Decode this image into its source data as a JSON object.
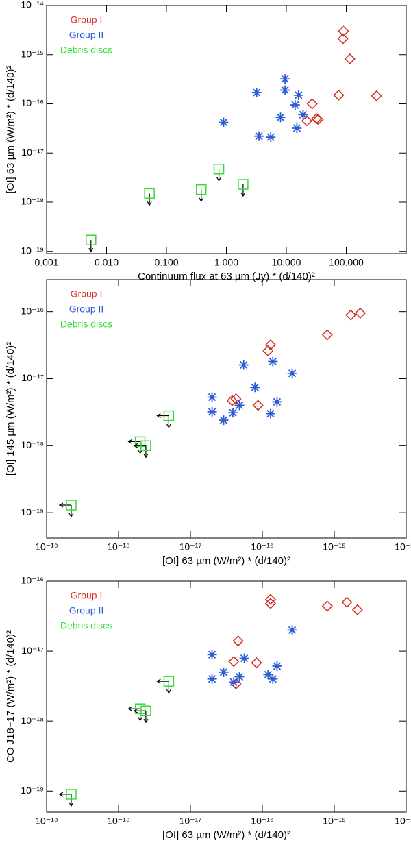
{
  "chart_data": [
    {
      "type": "scatter",
      "xscale": "log",
      "yscale": "log",
      "xlabel": "Continuum flux at 63 µm (Jy) * (d/140)²",
      "ylabel": "[OI] 63 µm (W/m²) * (d/140)²",
      "xlim": [
        0.001,
        1000
      ],
      "ylim": [
        9e-20,
        1e-14
      ],
      "xticks": [
        0.001,
        {
          "value": 0.01,
          "label": "0.010"
        },
        {
          "value": 0.1,
          "label": "0.100"
        },
        {
          "value": 1,
          "label": "1.000"
        },
        {
          "value": 10,
          "label": "10.000"
        },
        {
          "value": 100,
          "label": "100.000"
        }
      ],
      "yticks": [
        {
          "value": 1e-14,
          "label": "10⁻¹⁴"
        },
        {
          "value": 1e-15,
          "label": "10⁻¹⁵"
        },
        {
          "value": 1e-16,
          "label": "10⁻¹⁶"
        },
        {
          "value": 1e-17,
          "label": "10⁻¹⁷"
        },
        {
          "value": 1e-18,
          "label": "10⁻¹⁸"
        },
        {
          "value": 1e-19,
          "label": "10⁻¹⁹"
        }
      ],
      "series": [
        {
          "name": "Group I",
          "color": "#d42a1e",
          "marker": "diamond",
          "x": [
            90,
            88,
            115,
            75,
            320,
            27,
            22,
            32,
            34
          ],
          "values": [
            3e-15,
            2.1e-15,
            8.2e-16,
            1.5e-16,
            1.45e-16,
            1e-16,
            4.5e-17,
            5e-17,
            4.8e-17
          ]
        },
        {
          "name": "Group II",
          "color": "#2a5ad6",
          "marker": "asterisk",
          "x": [
            0.9,
            3.2,
            3.5,
            5.5,
            9.5,
            9.5,
            8,
            14,
            16,
            15,
            19
          ],
          "values": [
            4.2e-17,
            1.7e-16,
            2.2e-17,
            2.1e-17,
            3.2e-16,
            1.9e-16,
            5.3e-17,
            9.5e-17,
            1.5e-16,
            3.2e-17,
            6e-17
          ]
        },
        {
          "name": "Debris discs",
          "color": "#33dd33",
          "marker": "square",
          "upper_limit": true,
          "x": [
            0.0055,
            0.052,
            0.38,
            0.75,
            1.9
          ],
          "values": [
            1.7e-19,
            1.5e-18,
            1.8e-18,
            4.7e-18,
            2.3e-18
          ]
        }
      ]
    },
    {
      "type": "scatter",
      "xscale": "log",
      "yscale": "log",
      "xlabel": "[OI] 63 µm (W/m²) * (d/140)²",
      "ylabel": "[OI] 145 µm (W/m²) * (d/140)²",
      "xlim": [
        1e-19,
        1e-14
      ],
      "ylim": [
        4.2e-20,
        3e-16
      ],
      "xticks": [
        {
          "value": 1e-19,
          "label": "10⁻¹⁹"
        },
        {
          "value": 1e-18,
          "label": "10⁻¹⁸"
        },
        {
          "value": 1e-17,
          "label": "10⁻¹⁷"
        },
        {
          "value": 1e-16,
          "label": "10⁻¹⁶"
        },
        {
          "value": 1e-15,
          "label": "10⁻¹⁵"
        },
        {
          "value": 1e-14,
          "label": "10⁻¹⁴"
        }
      ],
      "yticks": [
        {
          "value": 1e-16,
          "label": "10⁻¹⁶"
        },
        {
          "value": 1e-17,
          "label": "10⁻¹⁷"
        },
        {
          "value": 1e-18,
          "label": "10⁻¹⁸"
        },
        {
          "value": 1e-19,
          "label": "10⁻¹⁹"
        }
      ],
      "series": [
        {
          "name": "Group I",
          "color": "#d42a1e",
          "marker": "diamond",
          "x": [
            1.7e-15,
            2.3e-15,
            8e-16,
            1.3e-16,
            1.2e-16,
            4.3e-17,
            3.8e-17,
            8.7e-17
          ],
          "values": [
            8.9e-17,
            9.5e-17,
            4.5e-17,
            3.2e-17,
            2.6e-17,
            5e-18,
            4.7e-18,
            4e-18
          ]
        },
        {
          "name": "Group II",
          "color": "#2a5ad6",
          "marker": "asterisk",
          "x": [
            5.5e-17,
            1.4e-16,
            2.6e-16,
            2e-17,
            2e-17,
            2.9e-17,
            3.9e-17,
            4.8e-17,
            7.9e-17,
            1.3e-16,
            1.6e-16
          ],
          "values": [
            1.6e-17,
            1.8e-17,
            1.2e-17,
            5.3e-18,
            3.2e-18,
            2.4e-18,
            3.1e-18,
            4e-18,
            7.4e-18,
            3e-18,
            4.5e-18
          ]
        },
        {
          "name": "Debris discs",
          "color": "#33dd33",
          "marker": "square",
          "upper_limit": true,
          "x_upper_limit": true,
          "x": [
            2.2e-19,
            2e-18,
            2.4e-18,
            5e-18
          ],
          "values": [
            1.3e-19,
            1.15e-18,
            1e-18,
            2.8e-18
          ]
        }
      ]
    },
    {
      "type": "scatter",
      "xscale": "log",
      "yscale": "log",
      "xlabel": "[OI] 63 µm (W/m²) * (d/140)²",
      "ylabel": "CO J18−17 (W/m²) * (d/140)²",
      "xlim": [
        1e-19,
        1e-14
      ],
      "ylim": [
        5e-20,
        1e-16
      ],
      "xticks": [
        {
          "value": 1e-19,
          "label": "10⁻¹⁹"
        },
        {
          "value": 1e-18,
          "label": "10⁻¹⁸"
        },
        {
          "value": 1e-17,
          "label": "10⁻¹⁷"
        },
        {
          "value": 1e-16,
          "label": "10⁻¹⁶"
        },
        {
          "value": 1e-15,
          "label": "10⁻¹⁵"
        },
        {
          "value": 1e-14,
          "label": "10⁻¹⁴"
        }
      ],
      "yticks": [
        {
          "value": 1e-16,
          "label": "10⁻¹⁶"
        },
        {
          "value": 1e-17,
          "label": "10⁻¹⁷"
        },
        {
          "value": 1e-18,
          "label": "10⁻¹⁸"
        },
        {
          "value": 1e-19,
          "label": "10⁻¹⁹"
        }
      ],
      "series": [
        {
          "name": "Group I",
          "color": "#d42a1e",
          "marker": "diamond",
          "x": [
            1.3e-16,
            1.3e-16,
            8e-16,
            1.5e-15,
            2.1e-15,
            4.6e-17,
            4e-17,
            4.3e-17,
            8.3e-17
          ],
          "values": [
            5.5e-17,
            4.8e-17,
            4.4e-17,
            5e-17,
            3.9e-17,
            1.4e-17,
            7.1e-18,
            3.4e-18,
            6.8e-18
          ]
        },
        {
          "name": "Group II",
          "color": "#2a5ad6",
          "marker": "asterisk",
          "x": [
            2e-17,
            5.6e-17,
            2.6e-16,
            1.2e-16,
            1.4e-16,
            1.6e-16,
            2e-17,
            2.9e-17,
            4.8e-17,
            4e-17
          ],
          "values": [
            8.9e-18,
            7.9e-18,
            2e-17,
            4.6e-18,
            4e-18,
            6.1e-18,
            4e-18,
            5e-18,
            4.3e-18,
            3.6e-18
          ]
        },
        {
          "name": "Debris discs",
          "color": "#33dd33",
          "marker": "square",
          "upper_limit": true,
          "x_upper_limit": true,
          "x": [
            2.2e-19,
            2e-18,
            2.4e-18,
            5e-18
          ],
          "values": [
            9e-20,
            1.5e-18,
            1.4e-18,
            3.7e-18
          ]
        }
      ]
    }
  ]
}
